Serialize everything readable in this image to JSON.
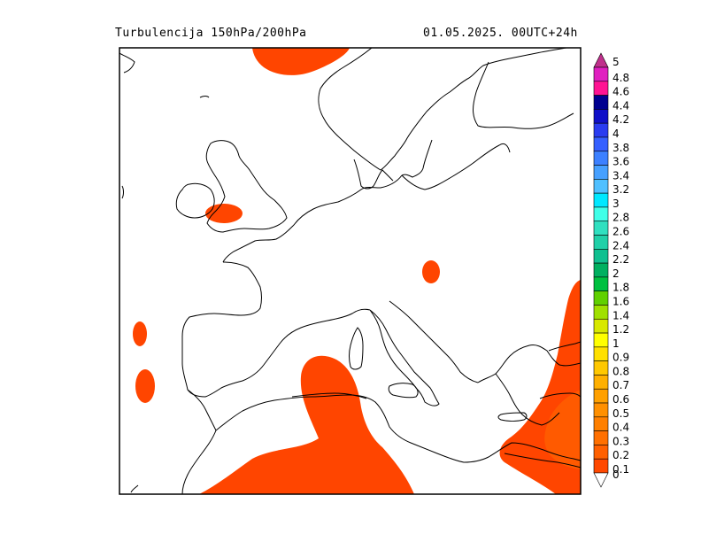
{
  "header": {
    "title_left": "Turbulencija 150hPa/200hPa",
    "title_right": "01.05.2025.   00UTC+24h"
  },
  "colorbar": {
    "bins": [
      {
        "label": "5",
        "color": "#c0308c"
      },
      {
        "label": "4.8",
        "color": "#e020c0"
      },
      {
        "label": "4.6",
        "color": "#ff1493"
      },
      {
        "label": "4.4",
        "color": "#000090"
      },
      {
        "label": "4.2",
        "color": "#1010c8"
      },
      {
        "label": "4",
        "color": "#2a3cf0"
      },
      {
        "label": "3.8",
        "color": "#3660ff"
      },
      {
        "label": "3.6",
        "color": "#3c80ff"
      },
      {
        "label": "3.4",
        "color": "#46a0ff"
      },
      {
        "label": "3.2",
        "color": "#50c0ff"
      },
      {
        "label": "3",
        "color": "#00e8ff"
      },
      {
        "label": "2.8",
        "color": "#40ffe8"
      },
      {
        "label": "2.6",
        "color": "#30e0c0"
      },
      {
        "label": "2.4",
        "color": "#20d0a8"
      },
      {
        "label": "2.2",
        "color": "#10c090"
      },
      {
        "label": "2",
        "color": "#00b060"
      },
      {
        "label": "1.8",
        "color": "#00c040"
      },
      {
        "label": "1.6",
        "color": "#60d000"
      },
      {
        "label": "1.4",
        "color": "#a0e000"
      },
      {
        "label": "1.2",
        "color": "#d8e800"
      },
      {
        "label": "1",
        "color": "#ffff00"
      },
      {
        "label": "0.9",
        "color": "#ffe000"
      },
      {
        "label": "0.8",
        "color": "#ffc800"
      },
      {
        "label": "0.7",
        "color": "#ffb000"
      },
      {
        "label": "0.6",
        "color": "#ffa000"
      },
      {
        "label": "0.5",
        "color": "#ff9000"
      },
      {
        "label": "0.4",
        "color": "#ff8000"
      },
      {
        "label": "0.3",
        "color": "#ff7000"
      },
      {
        "label": "0.2",
        "color": "#ff6000"
      },
      {
        "label": "0.1",
        "color": "#ff4800"
      },
      {
        "label": "0",
        "color": "#ffffff"
      }
    ]
  },
  "colors": {
    "turbulence_fill": "#ff4500",
    "turbulence_fill_strong": "#ff5a00",
    "coastline": "#000000"
  }
}
